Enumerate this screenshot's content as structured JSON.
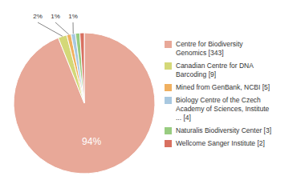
{
  "chart_data": {
    "type": "pie",
    "categories": [
      "Centre for Biodiversity\nGenomics [343]",
      "Canadian Centre for DNA\nBarcoding [9]",
      "Mined from GenBank, NCBI [5]",
      "Biology Centre of the Czech\nAcademy of Sciences, Institute\n... [4]",
      "Naturalis Biodiversity Center [3]",
      "Wellcome Sanger Institute [2]"
    ],
    "values": [
      94,
      2,
      1,
      1,
      1,
      1
    ],
    "value_labels": [
      "94%",
      "2%",
      "1%",
      "1%",
      null,
      null
    ],
    "colors": [
      "#e8a898",
      "#d4d878",
      "#f0b060",
      "#a8c8e0",
      "#98cc80",
      "#d87060"
    ],
    "legend": "right"
  }
}
